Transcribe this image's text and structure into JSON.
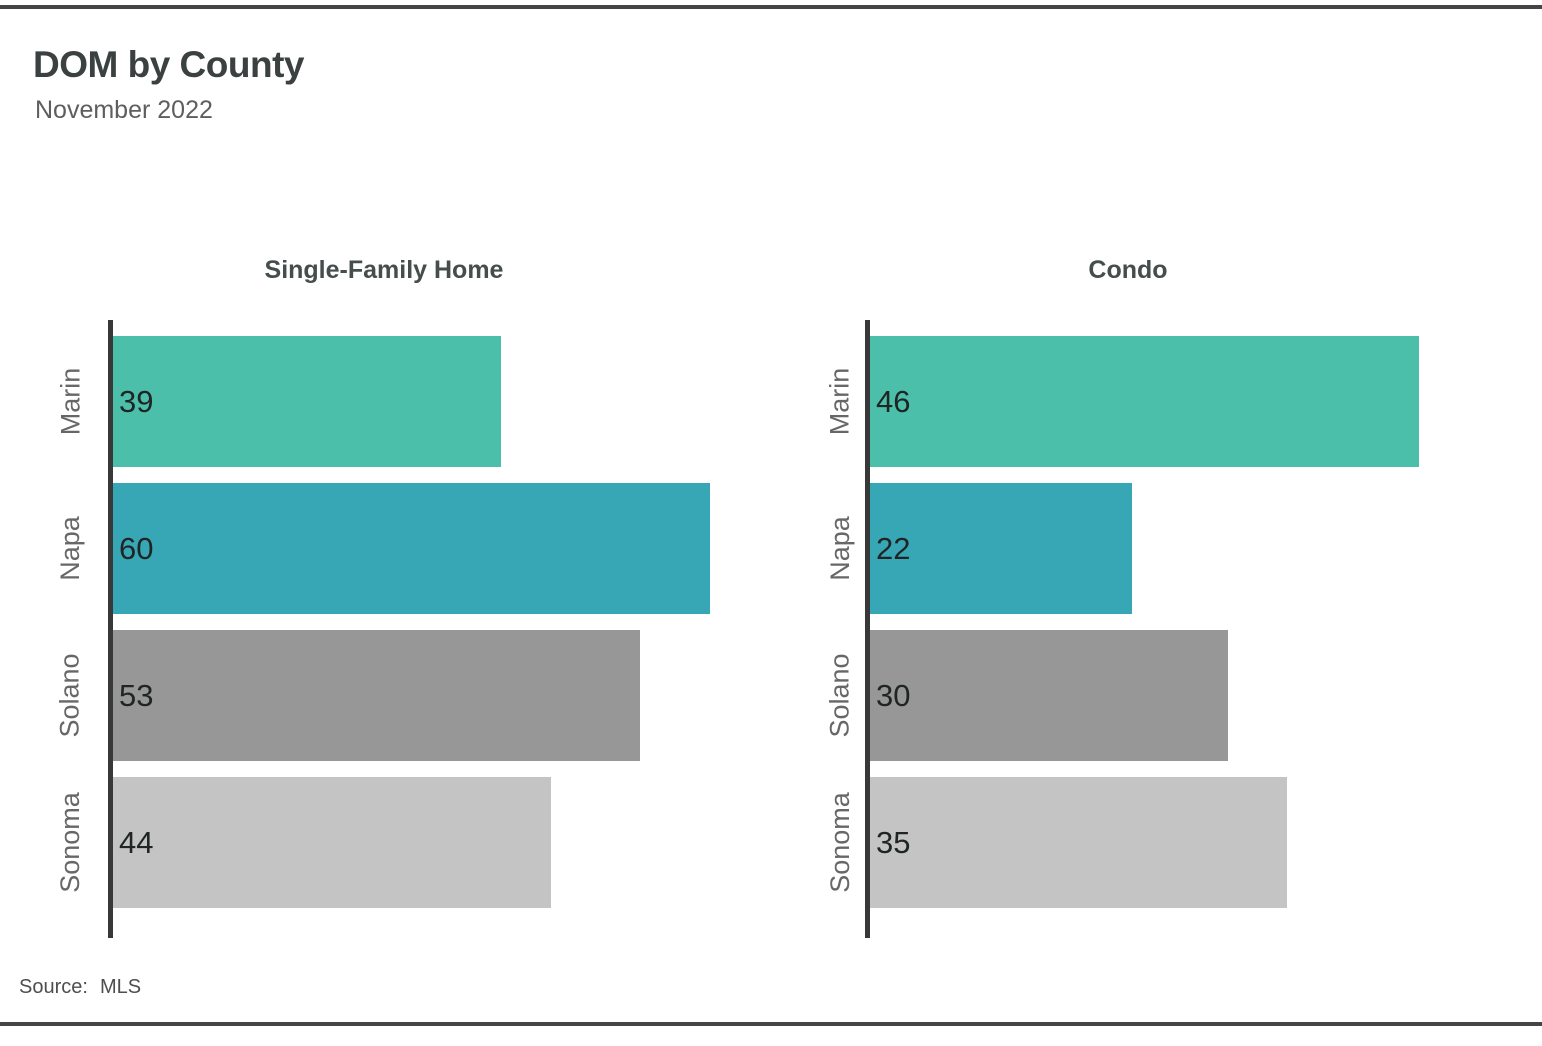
{
  "header": {
    "title": "DOM by County",
    "subtitle": "November 2022"
  },
  "source": {
    "label": "Source:",
    "value": "MLS"
  },
  "chart_data": {
    "type": "bar",
    "orientation": "horizontal",
    "title": "DOM by County",
    "subtitle": "November 2022",
    "categories": [
      "Marin",
      "Napa",
      "Solano",
      "Sonoma"
    ],
    "panels": [
      {
        "title": "Single-Family Home",
        "values": [
          39,
          60,
          53,
          44
        ]
      },
      {
        "title": "Condo",
        "values": [
          46,
          22,
          30,
          35
        ]
      }
    ],
    "bar_colors": [
      "#4cbfab",
      "#38a7b5",
      "#979797",
      "#c4c4c4"
    ],
    "axis_color": "#383838",
    "value_label_position": "inside-left",
    "legend": "none",
    "grid": false,
    "x_scale": "free per panel, 0 to max value + 5% expansion",
    "source_note": "Source: MLS"
  }
}
